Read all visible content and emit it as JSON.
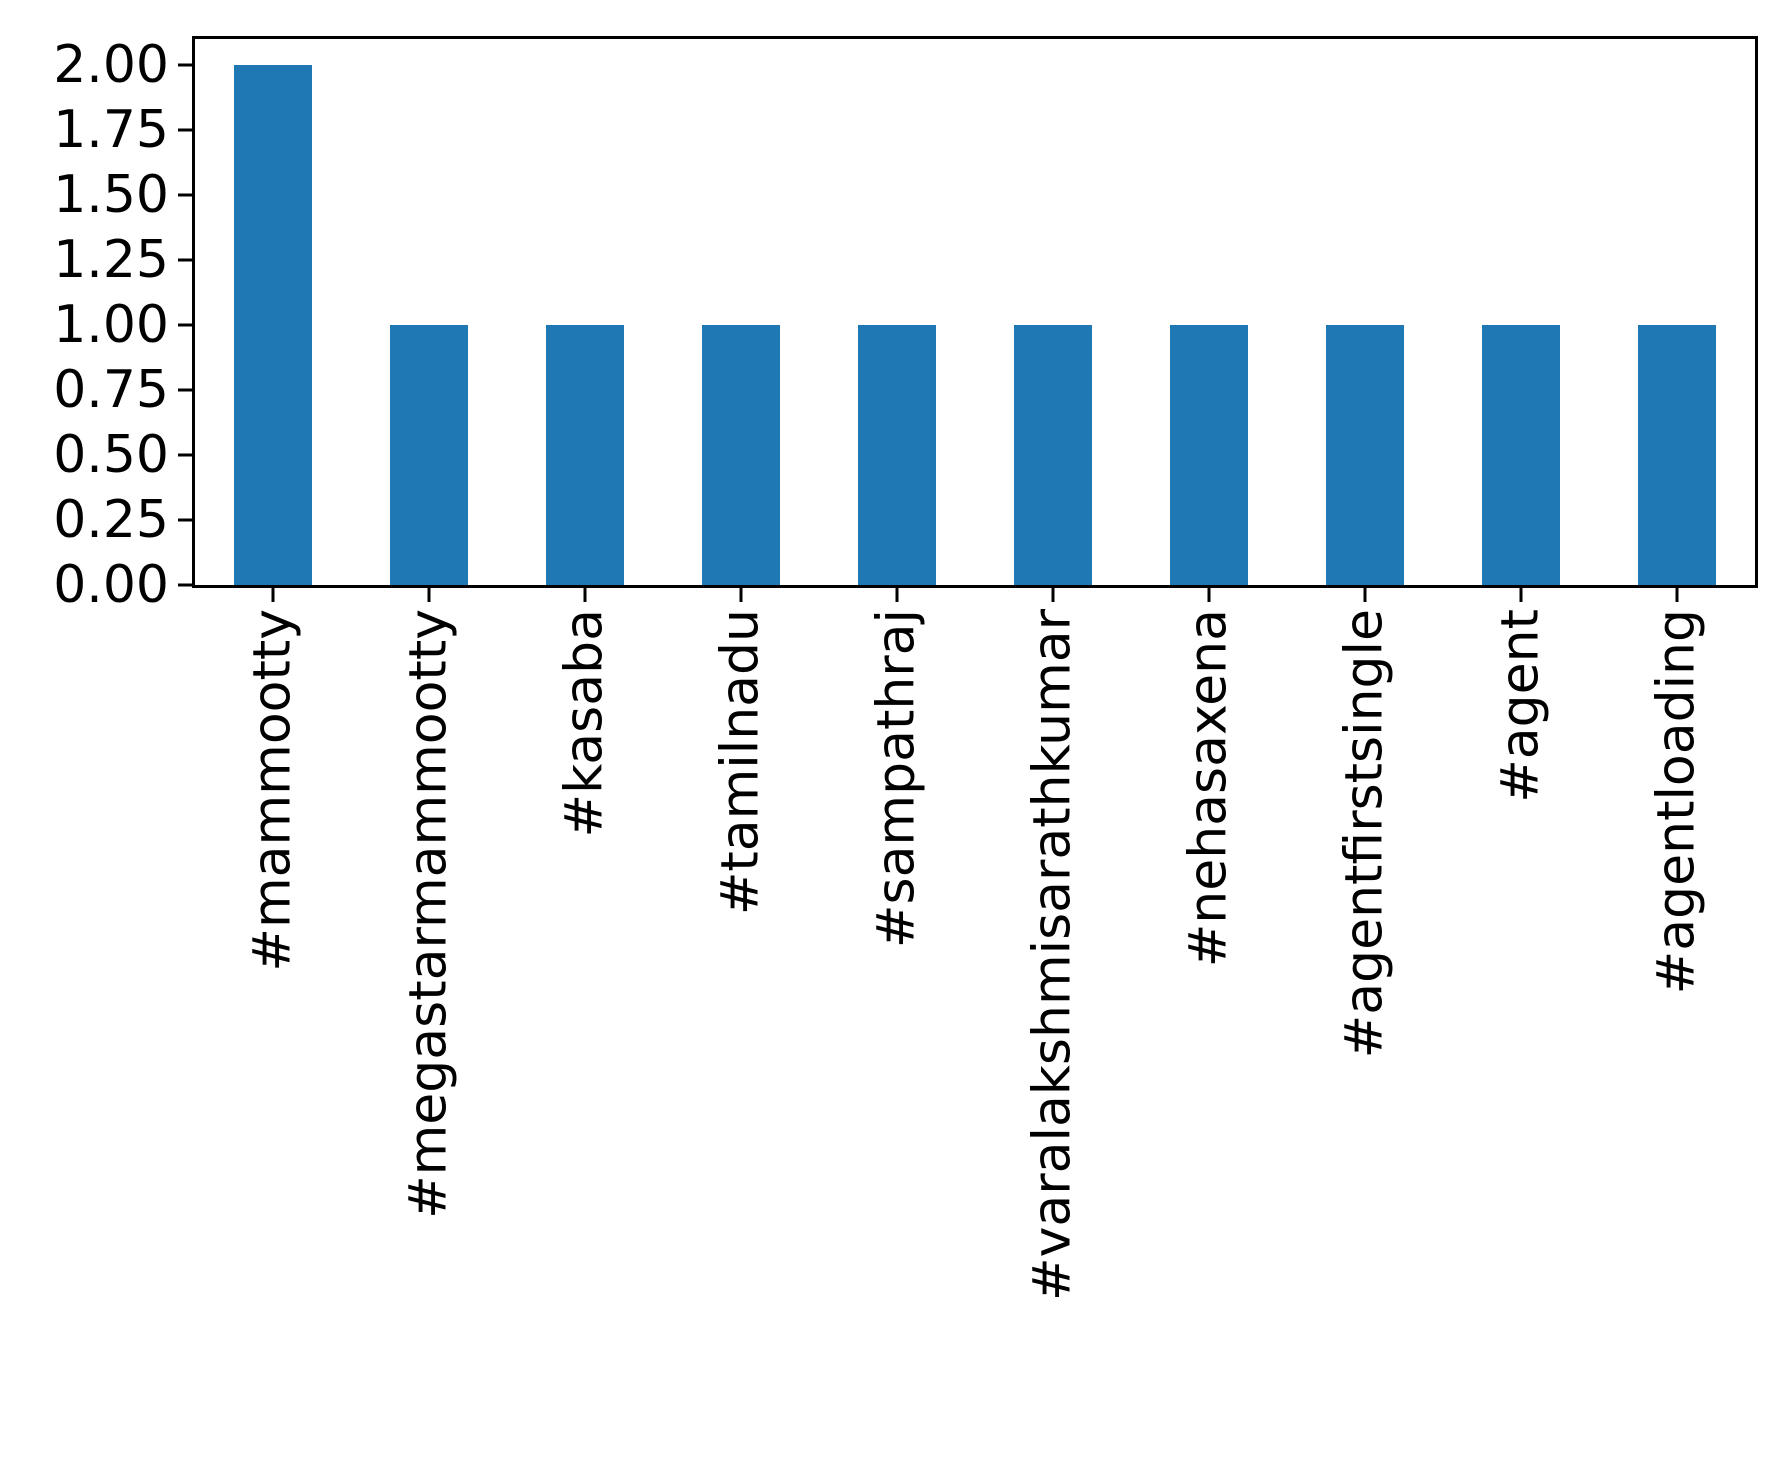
{
  "figure": {
    "background_color": "#ffffff",
    "title": ""
  },
  "chart_data": {
    "type": "bar",
    "title": "",
    "xlabel": "",
    "ylabel": "",
    "categories": [
      "#mammootty",
      "#megastarmammootty",
      "#kasaba",
      "#tamilnadu",
      "#sampathraj",
      "#varalakshmisarathkumar",
      "#nehasaxena",
      "#agentfirstsingle",
      "#agent",
      "#agentloading"
    ],
    "values": [
      2,
      1,
      1,
      1,
      1,
      1,
      1,
      1,
      1,
      1
    ],
    "ylim": [
      0,
      2.1
    ],
    "yticks": {
      "values": [
        0.0,
        0.25,
        0.5,
        0.75,
        1.0,
        1.25,
        1.5,
        1.75,
        2.0
      ],
      "labels": [
        "0.00",
        "0.25",
        "0.50",
        "0.75",
        "1.00",
        "1.25",
        "1.50",
        "1.75",
        "2.00"
      ]
    },
    "bar_width_fraction": 0.5,
    "bar_color": "#1f77b4",
    "axis_color": "#000000",
    "tick_label_color": "#000000",
    "grid": false,
    "legend": null,
    "x_tick_label_rotation_deg": 90
  }
}
